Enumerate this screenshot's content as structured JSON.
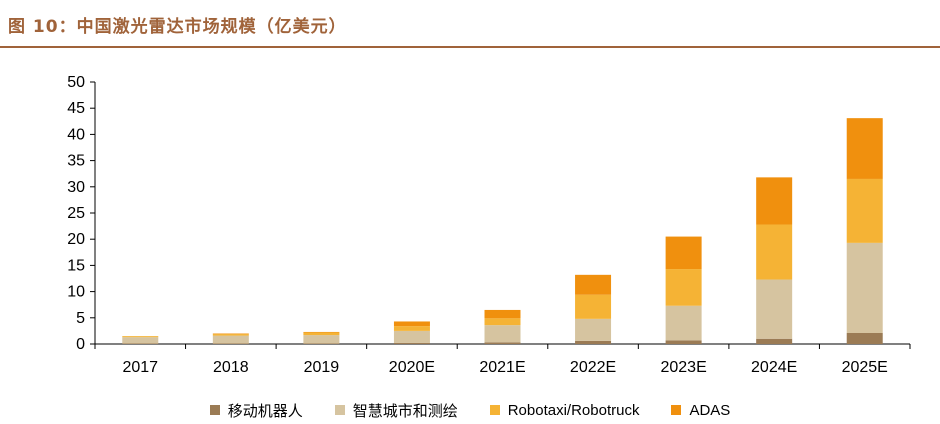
{
  "header": {
    "title": "图 10：中国激光雷达市场规模（亿美元）"
  },
  "chart_data": {
    "type": "bar",
    "stacked": true,
    "categories": [
      "2017",
      "2018",
      "2019",
      "2020E",
      "2021E",
      "2022E",
      "2023E",
      "2024E",
      "2025E"
    ],
    "series": [
      {
        "name": "移动机器人",
        "color": "#9b7b55",
        "values": [
          0.1,
          0.1,
          0.1,
          0.2,
          0.3,
          0.6,
          0.7,
          1.0,
          2.1
        ]
      },
      {
        "name": "智慧城市和测绘",
        "color": "#d6c4a0",
        "values": [
          1.2,
          1.5,
          1.6,
          2.3,
          3.3,
          4.2,
          6.6,
          11.3,
          17.2
        ]
      },
      {
        "name": "Robotaxi/Robotruck",
        "color": "#f5b335",
        "values": [
          0.2,
          0.3,
          0.5,
          0.9,
          1.3,
          4.6,
          7.0,
          10.5,
          12.2
        ]
      },
      {
        "name": "ADAS",
        "color": "#f0900e",
        "values": [
          0.0,
          0.1,
          0.1,
          0.9,
          1.6,
          3.8,
          6.2,
          9.0,
          11.6
        ]
      }
    ],
    "y_ticks": [
      "0",
      "5",
      "10",
      "15",
      "20",
      "25",
      "30",
      "35",
      "40",
      "45",
      "50"
    ],
    "ylim": [
      0,
      50
    ],
    "grid": false,
    "legend_position": "bottom"
  }
}
